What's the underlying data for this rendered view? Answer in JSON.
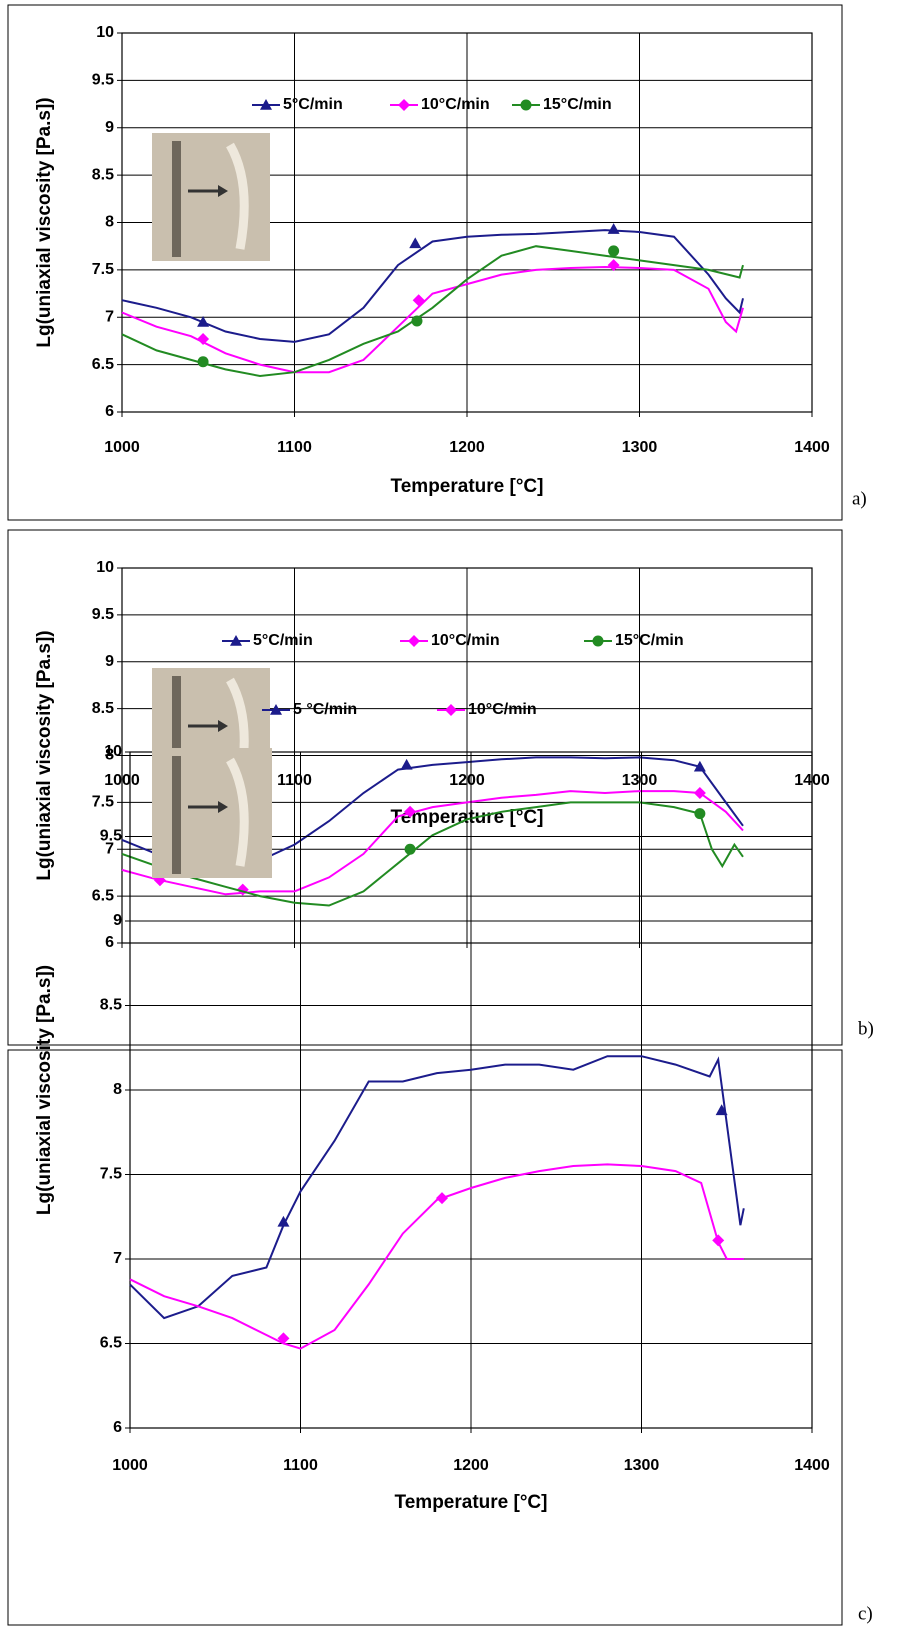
{
  "chart_data": [
    {
      "type": "line",
      "label": "a)",
      "xlabel": "Temperature [°C]",
      "ylabel": "Lg(uniaxial viscosity [Pa.s])",
      "xlim": [
        1000,
        1400
      ],
      "xticks": [
        1000,
        1100,
        1200,
        1300,
        1400
      ],
      "ylim": [
        6,
        10
      ],
      "yticks": [
        6,
        6.5,
        7,
        7.5,
        8,
        8.5,
        9,
        9.5,
        10
      ],
      "grid": true,
      "series": [
        {
          "name": "5°C/min",
          "color": "#1c1c8c",
          "marker": "triangle",
          "x": [
            1000,
            1020,
            1040,
            1060,
            1080,
            1100,
            1120,
            1140,
            1160,
            1180,
            1200,
            1220,
            1240,
            1260,
            1280,
            1300,
            1320,
            1340,
            1350,
            1358,
            1360
          ],
          "values": [
            7.18,
            7.1,
            7.0,
            6.85,
            6.77,
            6.74,
            6.82,
            7.1,
            7.55,
            7.8,
            7.85,
            7.87,
            7.88,
            7.9,
            7.92,
            7.9,
            7.85,
            7.45,
            7.2,
            7.05,
            7.2
          ],
          "marker_x": [
            1047,
            1170,
            1285
          ],
          "marker_values": [
            6.95,
            7.78,
            7.93
          ]
        },
        {
          "name": "10°C/min",
          "color": "#ff00ff",
          "marker": "diamond",
          "x": [
            1000,
            1020,
            1040,
            1060,
            1080,
            1100,
            1120,
            1140,
            1160,
            1180,
            1200,
            1220,
            1240,
            1260,
            1280,
            1300,
            1320,
            1340,
            1350,
            1356,
            1360
          ],
          "values": [
            7.05,
            6.9,
            6.8,
            6.62,
            6.5,
            6.42,
            6.42,
            6.55,
            6.9,
            7.25,
            7.35,
            7.45,
            7.5,
            7.52,
            7.53,
            7.52,
            7.5,
            7.3,
            6.95,
            6.85,
            7.1
          ],
          "marker_x": [
            1047,
            1172,
            1285
          ],
          "marker_values": [
            6.77,
            7.18,
            7.55
          ]
        },
        {
          "name": "15°C/min",
          "color": "#228b22",
          "marker": "circle",
          "x": [
            1000,
            1020,
            1040,
            1060,
            1080,
            1100,
            1120,
            1140,
            1160,
            1180,
            1200,
            1220,
            1240,
            1260,
            1280,
            1300,
            1320,
            1340,
            1358,
            1360
          ],
          "values": [
            6.82,
            6.65,
            6.55,
            6.45,
            6.38,
            6.42,
            6.55,
            6.72,
            6.85,
            7.1,
            7.4,
            7.65,
            7.75,
            7.7,
            7.65,
            7.6,
            7.55,
            7.5,
            7.42,
            7.55
          ],
          "marker_x": [
            1047,
            1171,
            1285
          ],
          "marker_values": [
            6.53,
            6.96,
            7.7
          ]
        }
      ]
    },
    {
      "type": "line",
      "label": "b)",
      "xlabel": "Temperature [°C]",
      "ylabel": "Lg(uniaxial viscosity [Pa.s])",
      "xlim": [
        1000,
        1400
      ],
      "xticks": [
        1000,
        1100,
        1200,
        1300,
        1400
      ],
      "ylim": [
        6,
        10
      ],
      "yticks": [
        6,
        6.5,
        7,
        7.5,
        8,
        8.5,
        9,
        9.5,
        10
      ],
      "grid": true,
      "series": [
        {
          "name": "5°C/min",
          "color": "#1c1c8c",
          "marker": "triangle",
          "x": [
            1000,
            1020,
            1040,
            1060,
            1080,
            1100,
            1120,
            1140,
            1160,
            1180,
            1200,
            1220,
            1240,
            1260,
            1280,
            1300,
            1320,
            1335,
            1350,
            1360
          ],
          "values": [
            7.1,
            6.95,
            6.85,
            6.83,
            6.88,
            7.05,
            7.3,
            7.6,
            7.85,
            7.9,
            7.93,
            7.96,
            7.98,
            7.98,
            7.97,
            7.98,
            7.95,
            7.88,
            7.5,
            7.25
          ],
          "marker_x": [
            1022,
            1165,
            1335
          ],
          "marker_values": [
            6.95,
            7.9,
            7.88
          ]
        },
        {
          "name": "10°C/min",
          "color": "#ff00ff",
          "marker": "diamond",
          "x": [
            1000,
            1020,
            1040,
            1060,
            1080,
            1100,
            1120,
            1140,
            1160,
            1180,
            1200,
            1220,
            1240,
            1260,
            1280,
            1300,
            1320,
            1335,
            1350,
            1360
          ],
          "values": [
            6.78,
            6.68,
            6.6,
            6.52,
            6.55,
            6.55,
            6.7,
            6.95,
            7.35,
            7.45,
            7.5,
            7.55,
            7.58,
            7.62,
            7.6,
            7.62,
            7.62,
            7.6,
            7.4,
            7.2
          ],
          "marker_x": [
            1022,
            1070,
            1167,
            1335
          ],
          "marker_values": [
            6.67,
            6.57,
            7.4,
            7.6
          ]
        },
        {
          "name": "15°C/min",
          "color": "#228b22",
          "marker": "circle",
          "x": [
            1000,
            1020,
            1040,
            1060,
            1080,
            1100,
            1120,
            1140,
            1160,
            1180,
            1200,
            1220,
            1240,
            1260,
            1280,
            1300,
            1320,
            1335,
            1342,
            1348,
            1355,
            1360
          ],
          "values": [
            6.95,
            6.82,
            6.7,
            6.6,
            6.5,
            6.43,
            6.4,
            6.55,
            6.85,
            7.15,
            7.32,
            7.4,
            7.45,
            7.5,
            7.5,
            7.5,
            7.45,
            7.38,
            7.0,
            6.82,
            7.05,
            6.92
          ],
          "marker_x": [
            1022,
            1167,
            1335
          ],
          "marker_values": [
            6.83,
            7.0,
            7.38
          ]
        }
      ]
    },
    {
      "type": "line",
      "label": "c)",
      "xlabel": "Temperature [°C]",
      "ylabel": "Lg(uniaxial viscosity [Pa.s])",
      "xlim": [
        1000,
        1400
      ],
      "xticks": [
        1000,
        1100,
        1200,
        1300,
        1400
      ],
      "ylim": [
        6,
        10
      ],
      "yticks": [
        6,
        6.5,
        7,
        7.5,
        8,
        8.5,
        9,
        9.5,
        10
      ],
      "grid": true,
      "series": [
        {
          "name": "5 °C/min",
          "color": "#1c1c8c",
          "marker": "triangle",
          "x": [
            1000,
            1020,
            1040,
            1060,
            1080,
            1090,
            1100,
            1120,
            1140,
            1160,
            1180,
            1200,
            1220,
            1240,
            1260,
            1280,
            1300,
            1320,
            1340,
            1345,
            1350,
            1358,
            1360
          ],
          "values": [
            6.85,
            6.65,
            6.72,
            6.9,
            6.95,
            7.2,
            7.4,
            7.7,
            8.05,
            8.05,
            8.1,
            8.12,
            8.15,
            8.15,
            8.12,
            8.2,
            8.2,
            8.15,
            8.08,
            8.18,
            7.8,
            7.2,
            7.3
          ],
          "marker_x": [
            1090,
            1347
          ],
          "marker_values": [
            7.22,
            7.88
          ]
        },
        {
          "name": "10°C/min",
          "color": "#ff00ff",
          "marker": "diamond",
          "x": [
            1000,
            1020,
            1040,
            1060,
            1080,
            1090,
            1100,
            1120,
            1140,
            1160,
            1180,
            1200,
            1220,
            1240,
            1260,
            1280,
            1300,
            1320,
            1335,
            1345,
            1350,
            1360
          ],
          "values": [
            6.88,
            6.78,
            6.72,
            6.65,
            6.55,
            6.5,
            6.47,
            6.58,
            6.85,
            7.15,
            7.35,
            7.42,
            7.48,
            7.52,
            7.55,
            7.56,
            7.55,
            7.52,
            7.45,
            7.1,
            7.0,
            7.0
          ],
          "marker_x": [
            1090,
            1183,
            1345
          ],
          "marker_values": [
            6.53,
            7.36,
            7.11
          ]
        }
      ]
    }
  ]
}
